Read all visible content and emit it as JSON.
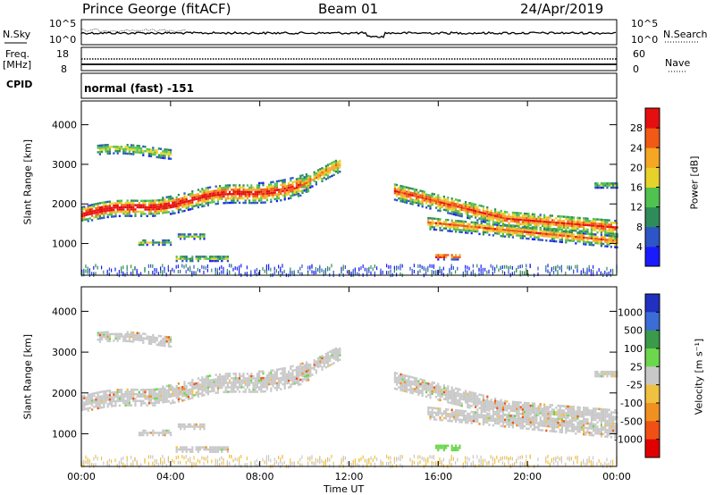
{
  "header": {
    "station": "Prince George (fitACF)",
    "beam": "Beam 01",
    "date": "24/Apr/2019"
  },
  "noise_panel": {
    "left_label": "N.Sky",
    "right_label": "N.Search",
    "left_ticks": [
      "10^5",
      "10^0"
    ],
    "right_ticks": [
      "10^5",
      "10^0"
    ]
  },
  "freq_panel": {
    "left_label_line1": "Freq.",
    "left_label_line2": "[MHz]",
    "right_label": "Nave",
    "left_ticks": [
      "18",
      "8"
    ],
    "right_ticks": [
      "60",
      "0"
    ]
  },
  "cpid_panel": {
    "label": "CPID",
    "mode_text": "normal (fast) -151"
  },
  "chart_data": [
    {
      "type": "heatmap",
      "name": "power",
      "ylabel": "Slant Range [km]",
      "y_ticks": [
        1000,
        2000,
        3000,
        4000
      ],
      "ylim": [
        200,
        4600
      ],
      "x_ticks": [
        "00:00",
        "04:00",
        "08:00",
        "12:00",
        "16:00",
        "20:00",
        "00:00"
      ],
      "xlim_hours": [
        0,
        24
      ],
      "colorbar_label": "Power [dB]",
      "colorbar_ticks": [
        "4",
        "8",
        "12",
        "16",
        "20",
        "24",
        "28"
      ],
      "colors": [
        "#1a1aff",
        "#2d55c8",
        "#2e8c5a",
        "#4fc24f",
        "#e6d22a",
        "#f5a623",
        "#f05a14",
        "#e60f0f"
      ]
    },
    {
      "type": "heatmap",
      "name": "velocity",
      "ylabel": "Slant Range [km]",
      "y_ticks": [
        1000,
        2000,
        3000,
        4000
      ],
      "ylim": [
        200,
        4600
      ],
      "x_ticks": [
        "00:00",
        "04:00",
        "08:00",
        "12:00",
        "16:00",
        "20:00",
        "00:00"
      ],
      "xlim_hours": [
        0,
        24
      ],
      "xlabel": "Time UT",
      "colorbar_label": "Velocity [m s⁻¹]",
      "colorbar_ticks": [
        "1000",
        "500",
        "100",
        "25",
        "-25",
        "-100",
        "-500",
        "-1000"
      ],
      "colors": [
        "#2030c0",
        "#3c6cd6",
        "#3a9a4a",
        "#6cd64c",
        "#c8c8c8",
        "#f0c040",
        "#f09020",
        "#f05014",
        "#e00000"
      ]
    }
  ]
}
